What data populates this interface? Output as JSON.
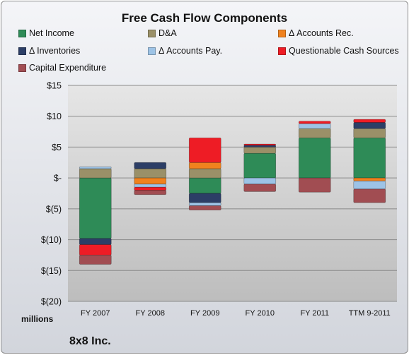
{
  "chart_data": {
    "type": "bar",
    "stacked": true,
    "title": "Free Cash Flow Components",
    "ylabel": "millions",
    "ylim": [
      -20,
      15
    ],
    "yticks": [
      15,
      10,
      5,
      0,
      -5,
      -10,
      -15,
      -20
    ],
    "ytick_labels": [
      "$15",
      "$10",
      "$5",
      "$-",
      "$(5)",
      "$(10)",
      "$(15)",
      "$(20)"
    ],
    "categories": [
      "FY 2007",
      "FY 2008",
      "FY 2009",
      "FY 2010",
      "FY 2011",
      "TTM 9-2011"
    ],
    "legend_position": "top",
    "grid": true,
    "series": [
      {
        "name": "Net Income",
        "color": "#2e8b57",
        "values": [
          -9.8,
          0.0,
          -2.5,
          4.0,
          6.5,
          6.5
        ]
      },
      {
        "name": "D&A",
        "color": "#9a9068",
        "values": [
          1.5,
          1.5,
          1.5,
          1.0,
          1.5,
          1.5
        ]
      },
      {
        "name": "Δ Accounts Rec.",
        "color": "#f0821e",
        "values": [
          0.0,
          -1.0,
          1.0,
          0.0,
          0.0,
          -0.5
        ]
      },
      {
        "name": "Δ Inventories",
        "color": "#2c3e66",
        "values": [
          -1.0,
          1.0,
          -1.5,
          0.3,
          0.0,
          1.0
        ]
      },
      {
        "name": "Δ Accounts Pay.",
        "color": "#9dc3e6",
        "values": [
          0.3,
          -0.5,
          -0.5,
          -1.0,
          0.8,
          -1.3
        ]
      },
      {
        "name": "Questionable Cash Sources",
        "color": "#ee1c25",
        "values": [
          -1.7,
          -0.5,
          4.0,
          0.2,
          0.4,
          0.5
        ]
      },
      {
        "name": "Capital Expenditure",
        "color": "#a14d52",
        "values": [
          -1.5,
          -0.7,
          -0.7,
          -1.2,
          -2.3,
          -2.2
        ]
      }
    ]
  },
  "footer": {
    "units": "millions",
    "company": "8x8 Inc."
  }
}
